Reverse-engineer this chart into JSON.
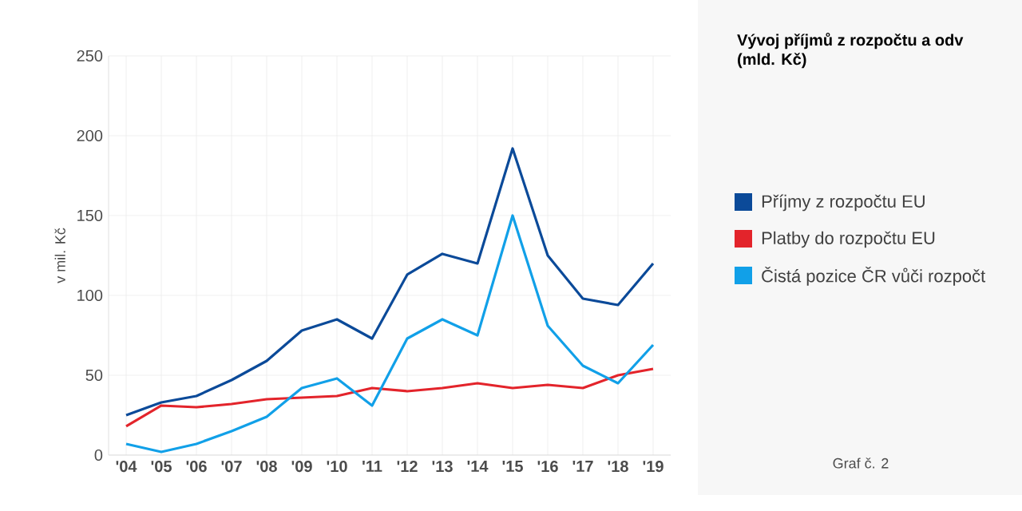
{
  "chart_data": {
    "type": "line",
    "title": "Vývoj příjmů z rozpočtu a odv",
    "subtitle": "(mld. Kč)",
    "ylabel": "v mil. Kč",
    "categories": [
      "'04",
      "'05",
      "'06",
      "'07",
      "'08",
      "'09",
      "'10",
      "'11",
      "'12",
      "'13",
      "'14",
      "'15",
      "'16",
      "'17",
      "'18",
      "'19"
    ],
    "series": [
      {
        "name": "Příjmy z rozpočtu EU",
        "color": "#0b4a99",
        "values": [
          25,
          33,
          37,
          47,
          59,
          78,
          85,
          73,
          113,
          126,
          120,
          192,
          125,
          98,
          94,
          120
        ]
      },
      {
        "name": "Platby do rozpočtu EU",
        "color": "#e3242b",
        "values": [
          18,
          31,
          30,
          32,
          35,
          36,
          37,
          42,
          40,
          42,
          45,
          42,
          44,
          42,
          50,
          54
        ]
      },
      {
        "name": "Čistá pozice ČR vůči rozpočt",
        "color": "#11a0e8",
        "values": [
          7,
          2,
          7,
          15,
          24,
          42,
          48,
          31,
          73,
          85,
          75,
          150,
          81,
          56,
          45,
          69
        ]
      }
    ],
    "ylim": [
      0,
      250
    ],
    "yticks": [
      0,
      50,
      100,
      150,
      200,
      250
    ],
    "grid": true,
    "legend": "right",
    "marker": "none",
    "line_style": "solid",
    "annotations": [
      "Graf č. 2"
    ]
  }
}
